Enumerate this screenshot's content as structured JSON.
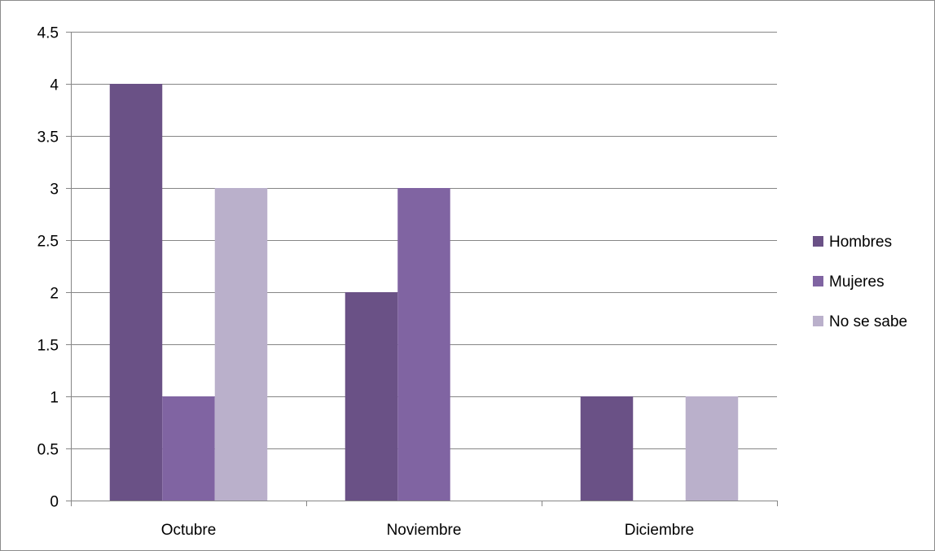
{
  "chart_data": {
    "type": "bar",
    "title": "",
    "xlabel": "",
    "ylabel": "",
    "categories": [
      "Octubre",
      "Noviembre",
      "Diciembre"
    ],
    "series": [
      {
        "name": "Hombres",
        "values": [
          4,
          2,
          1
        ],
        "color": "#6a5186"
      },
      {
        "name": "Mujeres",
        "values": [
          1,
          3,
          0
        ],
        "color": "#8064a2"
      },
      {
        "name": "No se sabe",
        "values": [
          3,
          0,
          1
        ],
        "color": "#bab0cb"
      }
    ],
    "ylim": [
      0,
      4.5
    ],
    "yticks": [
      0,
      0.5,
      1,
      1.5,
      2,
      2.5,
      3,
      3.5,
      4,
      4.5
    ],
    "ytick_labels": [
      "0",
      "0.5",
      "1",
      "1.5",
      "2",
      "2.5",
      "3",
      "3.5",
      "4",
      "4.5"
    ],
    "grid": true,
    "legend_position": "right"
  }
}
